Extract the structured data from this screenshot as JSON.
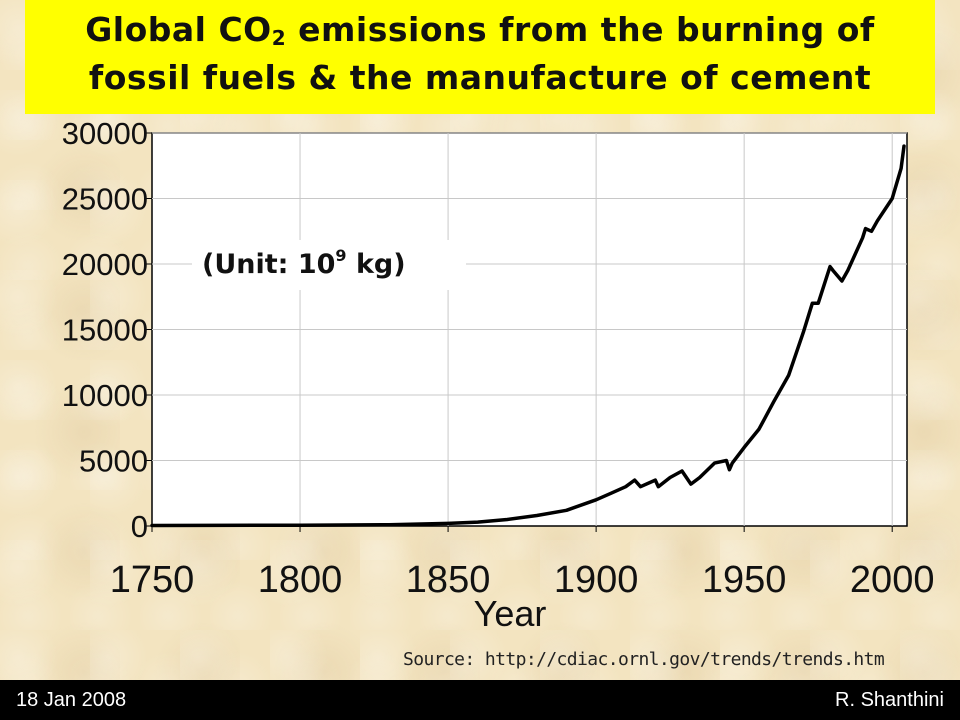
{
  "title": {
    "line1_before": "Global CO",
    "line1_sub": "2",
    "line1_after": " emissions from the burning of",
    "line2": "fossil fuels & the manufacture of cement"
  },
  "unit_label": {
    "before": "(Unit: 10",
    "sup": "9",
    "after": " kg)"
  },
  "source": "Source: http://cdiac.ornl.gov/trends/trends.htm",
  "footer": {
    "date": "18 Jan 2008",
    "author": "R. Shanthini"
  },
  "chart_data": {
    "type": "line",
    "xlabel": "Year",
    "ylabel": "",
    "xlim": [
      1750,
      2005
    ],
    "ylim": [
      0,
      30000
    ],
    "x_ticks": [
      1750,
      1800,
      1850,
      1900,
      1950,
      2000
    ],
    "y_ticks": [
      0,
      5000,
      10000,
      15000,
      20000,
      25000,
      30000
    ],
    "grid": true,
    "colors": {
      "line": "#000000",
      "grid": "#c8c8c8",
      "plot_bg": "#ffffff",
      "title_bg": "#ffff00"
    },
    "series": [
      {
        "x": [
          1750,
          1800,
          1830,
          1850,
          1860,
          1870,
          1880,
          1890,
          1900,
          1905,
          1910,
          1913,
          1915,
          1920,
          1921,
          1925,
          1929,
          1932,
          1935,
          1940,
          1944,
          1945,
          1946,
          1950,
          1955,
          1960,
          1965,
          1970,
          1973,
          1975,
          1979,
          1980,
          1983,
          1985,
          1990,
          1991,
          1993,
          1995,
          2000,
          2003,
          2004
        ],
        "values": [
          40,
          60,
          100,
          200,
          300,
          500,
          800,
          1200,
          2000,
          2500,
          3000,
          3500,
          3000,
          3500,
          3000,
          3700,
          4200,
          3200,
          3700,
          4800,
          5000,
          4300,
          4800,
          6000,
          7400,
          9500,
          11500,
          14800,
          17000,
          17000,
          19800,
          19500,
          18700,
          19500,
          22000,
          22700,
          22500,
          23300,
          25000,
          27300,
          29000
        ]
      }
    ]
  }
}
